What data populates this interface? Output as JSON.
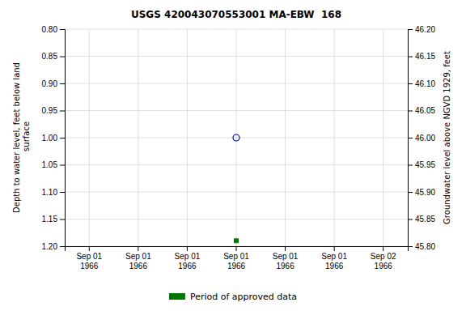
{
  "chart_data": {
    "type": "scatter",
    "title": "USGS 420043070553001 MA-EBW  168",
    "categories": [
      "Sep 01\n1966",
      "Sep 01\n1966",
      "Sep 01\n1966",
      "Sep 01\n1966",
      "Sep 01\n1966",
      "Sep 01\n1966",
      "Sep 02\n1966"
    ],
    "series": [
      {
        "color": "#0000bb",
        "marker": "circle-open",
        "values": [
          null,
          null,
          null,
          1.0,
          null,
          null,
          null
        ]
      },
      {
        "name": "Period of approved data",
        "color": "#007700",
        "marker": "square",
        "values": [
          null,
          null,
          null,
          1.19,
          null,
          null,
          null
        ]
      }
    ],
    "ylabel": "Depth to water level, feet below land\n surface",
    "y2label": "Groundwater level above NGVD 1929, feet",
    "ylim": [
      1.2,
      0.8
    ],
    "yticks": [
      {
        "value": 0.8,
        "label": "0.80"
      },
      0.85,
      {
        "value": 0.9,
        "label": "0.90"
      },
      0.95,
      {
        "value": 1.0,
        "label": "1.00"
      },
      1.05,
      {
        "value": 1.1,
        "label": "1.10"
      },
      1.15,
      {
        "value": 1.2,
        "label": "1.20"
      }
    ],
    "y2lim": [
      45.8,
      46.2
    ],
    "y2ticks": [
      {
        "value": 46.2,
        "label": "46.20"
      },
      46.15,
      {
        "value": 46.1,
        "label": "46.10"
      },
      46.05,
      {
        "value": 46.0,
        "label": "46.00"
      },
      45.95,
      {
        "value": 45.9,
        "label": "45.90"
      },
      45.85,
      {
        "value": 45.8,
        "label": "45.80"
      }
    ],
    "grid": true,
    "legend": "bottom"
  }
}
